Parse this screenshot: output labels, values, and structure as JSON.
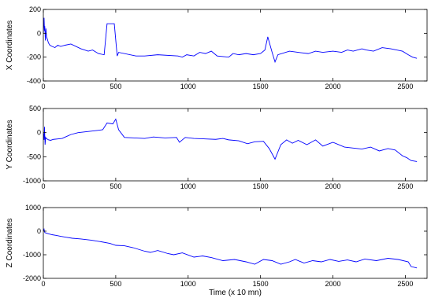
{
  "chart_data": [
    {
      "type": "line",
      "ylabel": "X Coordinates",
      "xlabel": "",
      "xlim": [
        0,
        2650
      ],
      "ylim": [
        -400,
        200
      ],
      "xticks": [
        0,
        500,
        1000,
        1500,
        2000,
        2500
      ],
      "yticks": [
        -400,
        -200,
        0,
        200
      ],
      "xtick_labels": [
        "0",
        "500",
        "1000",
        "1500",
        "2000",
        "2500"
      ],
      "ytick_labels": [
        "-400",
        "-200",
        "0",
        "200"
      ],
      "grid": false,
      "color": "#0000ff",
      "series": [
        {
          "x": [
            0,
            5,
            8,
            10,
            14,
            18,
            22,
            28,
            35,
            45,
            60,
            80,
            100,
            120,
            150,
            190,
            190,
            260,
            260,
            310,
            310,
            340,
            340,
            380,
            380,
            420,
            420,
            440,
            440,
            490,
            490,
            510,
            510,
            520,
            520,
            640,
            640,
            700,
            700,
            790,
            790,
            930,
            930,
            960,
            960,
            990,
            990,
            1040,
            1040,
            1080,
            1080,
            1120,
            1120,
            1160,
            1160,
            1200,
            1200,
            1280,
            1280,
            1310,
            1310,
            1350,
            1350,
            1400,
            1400,
            1450,
            1450,
            1500,
            1500,
            1530,
            1530,
            1550,
            1550,
            1580,
            1580,
            1600,
            1600,
            1620,
            1620,
            1700,
            1700,
            1760,
            1760,
            1830,
            1830,
            1880,
            1880,
            1930,
            1930,
            2000,
            2000,
            2060,
            2060,
            2100,
            2100,
            2140,
            2140,
            2200,
            2200,
            2230,
            2230,
            2280,
            2280,
            2340,
            2340,
            2400,
            2400,
            2440,
            2440,
            2480,
            2480,
            2520,
            2520,
            2550,
            2550,
            2580
          ],
          "y": [
            0,
            130,
            20,
            60,
            -60,
            40,
            -30,
            -50,
            -80,
            -100,
            -110,
            -120,
            -100,
            -110,
            -100,
            -90,
            -90,
            -130,
            -130,
            -150,
            -150,
            -140,
            -140,
            -170,
            -170,
            -180,
            -180,
            80,
            80,
            80,
            80,
            -190,
            -190,
            -160,
            -160,
            -190,
            -190,
            -190,
            -190,
            -180,
            -180,
            -190,
            -190,
            -200,
            -200,
            -180,
            -180,
            -190,
            -190,
            -160,
            -160,
            -170,
            -170,
            -150,
            -150,
            -190,
            -190,
            -200,
            -200,
            -170,
            -170,
            -180,
            -180,
            -170,
            -170,
            -180,
            -180,
            -170,
            -170,
            -140,
            -140,
            -30,
            -30,
            -160,
            -160,
            -240,
            -240,
            -180,
            -180,
            -150,
            -150,
            -160,
            -160,
            -170,
            -170,
            -150,
            -150,
            -160,
            -160,
            -150,
            -150,
            -160,
            -160,
            -140,
            -140,
            -150,
            -150,
            -130,
            -130,
            -140,
            -140,
            -150,
            -150,
            -120,
            -120,
            -130,
            -130,
            -140,
            -140,
            -150,
            -150,
            -180,
            -180,
            -200,
            -200,
            -210
          ]
        }
      ]
    },
    {
      "type": "line",
      "ylabel": "Y Coordinates",
      "xlabel": "",
      "xlim": [
        0,
        2650
      ],
      "ylim": [
        -1000,
        500
      ],
      "xticks": [
        0,
        500,
        1000,
        1500,
        2000,
        2500
      ],
      "yticks": [
        -1000,
        -500,
        0,
        500
      ],
      "xtick_labels": [
        "0",
        "500",
        "1000",
        "1500",
        "2000",
        "2500"
      ],
      "ytick_labels": [
        "-1000",
        "-500",
        "0",
        "500"
      ],
      "grid": false,
      "color": "#0000ff",
      "series": [
        {
          "x": [
            0,
            5,
            8,
            12,
            16,
            20,
            25,
            35,
            50,
            70,
            100,
            130,
            160,
            190,
            190,
            240,
            240,
            300,
            300,
            360,
            360,
            410,
            410,
            440,
            440,
            480,
            480,
            500,
            500,
            520,
            520,
            560,
            560,
            700,
            700,
            760,
            760,
            840,
            840,
            920,
            920,
            940,
            940,
            980,
            980,
            1040,
            1040,
            1120,
            1120,
            1190,
            1190,
            1240,
            1240,
            1280,
            1280,
            1350,
            1350,
            1410,
            1410,
            1460,
            1460,
            1520,
            1520,
            1560,
            1560,
            1600,
            1600,
            1640,
            1640,
            1680,
            1680,
            1720,
            1720,
            1760,
            1760,
            1820,
            1820,
            1880,
            1880,
            1930,
            1930,
            2000,
            2000,
            2080,
            2080,
            2140,
            2140,
            2200,
            2200,
            2260,
            2260,
            2320,
            2320,
            2380,
            2380,
            2430,
            2430,
            2480,
            2480,
            2510,
            2510,
            2540,
            2540,
            2580
          ],
          "y": [
            0,
            -150,
            120,
            -250,
            -100,
            -120,
            -130,
            -150,
            -160,
            -140,
            -130,
            -120,
            -80,
            -40,
            -40,
            0,
            0,
            20,
            20,
            40,
            40,
            60,
            60,
            200,
            200,
            180,
            180,
            280,
            280,
            60,
            60,
            -100,
            -100,
            -120,
            -120,
            -90,
            -90,
            -110,
            -110,
            -100,
            -100,
            -200,
            -200,
            -100,
            -100,
            -120,
            -120,
            -130,
            -130,
            -140,
            -140,
            -120,
            -120,
            -150,
            -150,
            -170,
            -170,
            -230,
            -230,
            -190,
            -190,
            -180,
            -180,
            -330,
            -330,
            -550,
            -550,
            -250,
            -250,
            -150,
            -150,
            -220,
            -220,
            -160,
            -160,
            -250,
            -250,
            -150,
            -150,
            -280,
            -280,
            -200,
            -200,
            -300,
            -300,
            -320,
            -320,
            -340,
            -340,
            -300,
            -300,
            -380,
            -380,
            -330,
            -330,
            -360,
            -360,
            -480,
            -480,
            -520,
            -520,
            -580,
            -580,
            -600
          ]
        }
      ]
    },
    {
      "type": "line",
      "ylabel": "Z Coordinates",
      "xlabel": "Time (x 10 mn)",
      "xlim": [
        0,
        2650
      ],
      "ylim": [
        -2000,
        1000
      ],
      "xticks": [
        0,
        500,
        1000,
        1500,
        2000,
        2500
      ],
      "yticks": [
        -2000,
        -1000,
        0,
        1000
      ],
      "xtick_labels": [
        "0",
        "500",
        "1000",
        "1500",
        "2000",
        "2500"
      ],
      "ytick_labels": [
        "-2000",
        "-1000",
        "0",
        "1000"
      ],
      "grid": false,
      "color": "#0000ff",
      "series": [
        {
          "x": [
            0,
            5,
            10,
            20,
            40,
            60,
            90,
            120,
            160,
            200,
            200,
            260,
            260,
            330,
            330,
            400,
            400,
            460,
            460,
            500,
            500,
            560,
            560,
            620,
            620,
            700,
            700,
            740,
            740,
            790,
            790,
            860,
            860,
            900,
            900,
            960,
            960,
            1040,
            1040,
            1100,
            1100,
            1160,
            1160,
            1240,
            1240,
            1320,
            1320,
            1400,
            1400,
            1460,
            1460,
            1520,
            1520,
            1580,
            1580,
            1640,
            1640,
            1700,
            1700,
            1740,
            1740,
            1800,
            1800,
            1860,
            1860,
            1920,
            1920,
            1980,
            1980,
            2040,
            2040,
            2100,
            2100,
            2160,
            2160,
            2220,
            2220,
            2300,
            2300,
            2380,
            2380,
            2450,
            2450,
            2520,
            2520,
            2540,
            2540,
            2580
          ],
          "y": [
            0,
            80,
            -60,
            -80,
            -120,
            -150,
            -180,
            -220,
            -260,
            -300,
            -300,
            -330,
            -330,
            -380,
            -380,
            -450,
            -450,
            -520,
            -520,
            -600,
            -600,
            -620,
            -620,
            -700,
            -700,
            -850,
            -850,
            -900,
            -900,
            -820,
            -820,
            -950,
            -950,
            -1000,
            -1000,
            -920,
            -920,
            -1100,
            -1100,
            -1050,
            -1050,
            -1120,
            -1120,
            -1250,
            -1250,
            -1200,
            -1200,
            -1300,
            -1300,
            -1400,
            -1400,
            -1200,
            -1200,
            -1250,
            -1250,
            -1400,
            -1400,
            -1300,
            -1300,
            -1200,
            -1200,
            -1350,
            -1350,
            -1250,
            -1250,
            -1300,
            -1300,
            -1200,
            -1200,
            -1280,
            -1280,
            -1220,
            -1220,
            -1300,
            -1300,
            -1180,
            -1180,
            -1250,
            -1250,
            -1150,
            -1150,
            -1200,
            -1200,
            -1300,
            -1300,
            -1500,
            -1500,
            -1560
          ]
        }
      ]
    }
  ]
}
